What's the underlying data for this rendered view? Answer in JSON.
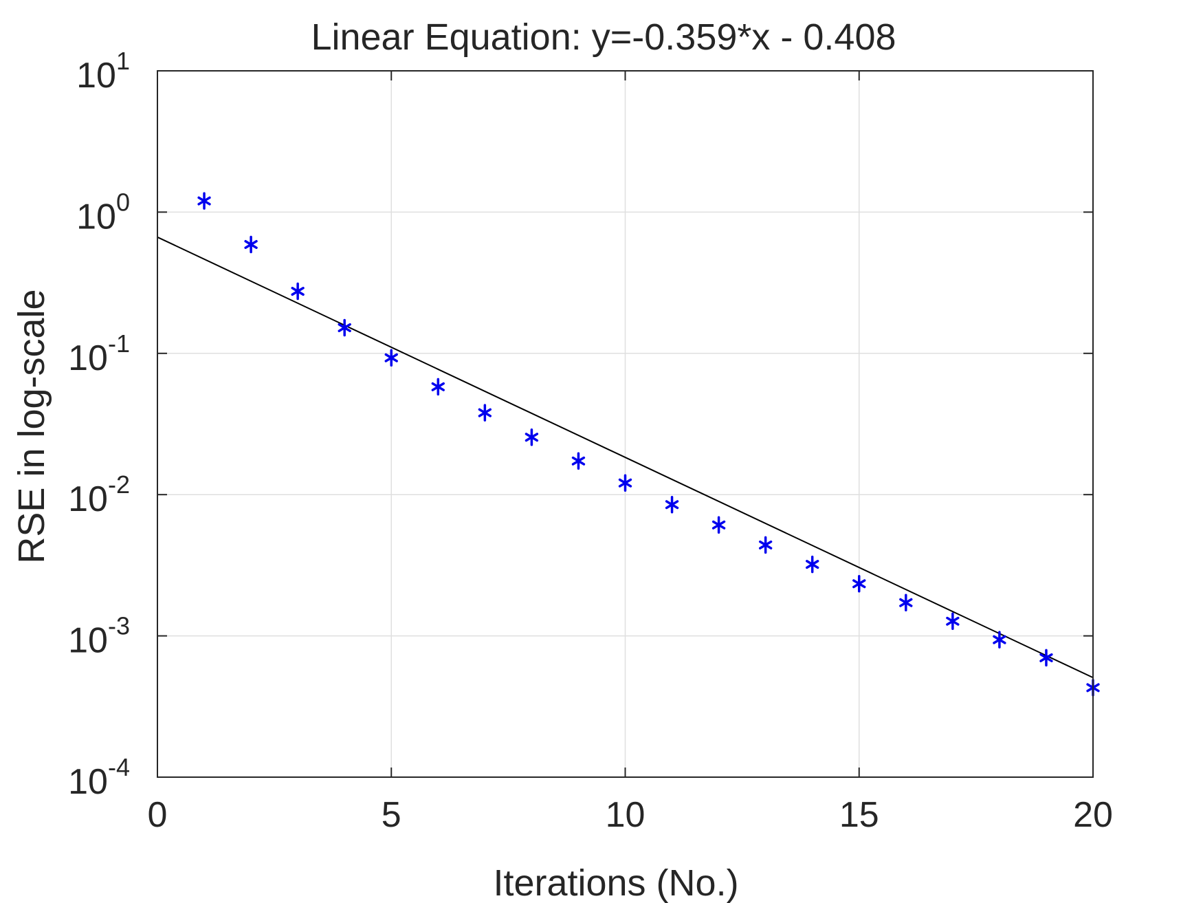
{
  "chart_data": {
    "type": "scatter",
    "title": "Linear Equation: y=-0.359*x - 0.408",
    "xlabel": "Iterations (No.)",
    "ylabel": "RSE in log-scale",
    "xlim": [
      0,
      20
    ],
    "ylim": [
      0.0001,
      10
    ],
    "yscale": "log",
    "grid": true,
    "x_ticks": [
      {
        "value": 0,
        "label": "0"
      },
      {
        "value": 5,
        "label": "5"
      },
      {
        "value": 10,
        "label": "10"
      },
      {
        "value": 15,
        "label": "15"
      },
      {
        "value": 20,
        "label": "20"
      }
    ],
    "y_ticks": [
      {
        "value": 10,
        "base": "10",
        "exp": "1"
      },
      {
        "value": 1,
        "base": "10",
        "exp": "0"
      },
      {
        "value": 0.1,
        "base": "10",
        "exp": "-1"
      },
      {
        "value": 0.01,
        "base": "10",
        "exp": "-2"
      },
      {
        "value": 0.001,
        "base": "10",
        "exp": "-3"
      },
      {
        "value": 0.0001,
        "base": "10",
        "exp": "-4"
      }
    ],
    "series": [
      {
        "marker": "asterisk",
        "color": "#0000ee",
        "x": [
          1,
          2,
          3,
          4,
          5,
          6,
          7,
          8,
          9,
          10,
          11,
          12,
          13,
          14,
          15,
          16,
          17,
          18,
          19,
          20
        ],
        "y": [
          1.2,
          0.59,
          0.275,
          0.152,
          0.093,
          0.058,
          0.038,
          0.0255,
          0.0173,
          0.0121,
          0.0085,
          0.0061,
          0.0044,
          0.00321,
          0.00234,
          0.00172,
          0.00127,
          0.00094,
          0.0007,
          0.00043
        ]
      }
    ],
    "fit_line": {
      "color": "#000000",
      "slope": -0.359,
      "intercept": -0.408,
      "x_range": [
        0,
        20
      ]
    }
  }
}
